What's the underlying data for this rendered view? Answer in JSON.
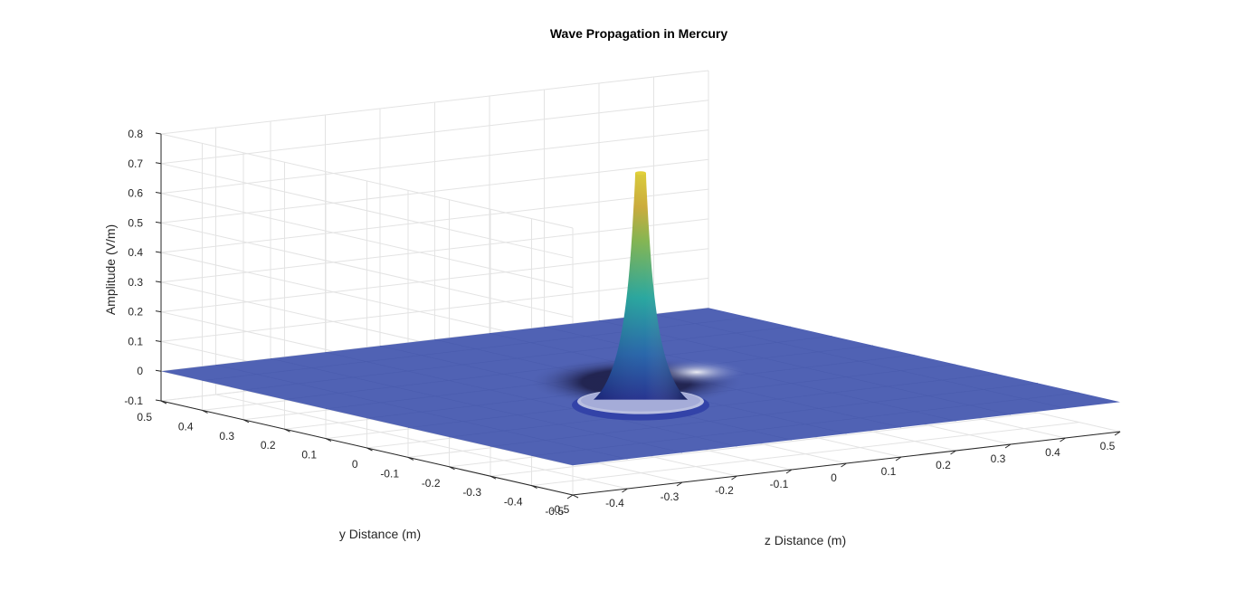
{
  "chart_data": {
    "type": "surface",
    "title": "Wave Propagation in Mercury",
    "xlabel": "z Distance (m)",
    "ylabel": "y Distance (m)",
    "zlabel": "Amplitude (V/m)",
    "x_range": [
      -0.5,
      0.5
    ],
    "y_range": [
      -0.5,
      0.5
    ],
    "z_range": [
      -0.1,
      0.8
    ],
    "x_ticks": [
      "-0.5",
      "-0.4",
      "-0.3",
      "-0.2",
      "-0.1",
      "0",
      "0.1",
      "0.2",
      "0.3",
      "0.4",
      "0.5"
    ],
    "y_ticks": [
      "0.5",
      "0.4",
      "0.3",
      "0.2",
      "0.1",
      "0",
      "-0.1",
      "-0.2",
      "-0.3",
      "-0.4",
      "-0.5"
    ],
    "z_ticks": [
      "-0.1",
      "0",
      "0.1",
      "0.2",
      "0.3",
      "0.4",
      "0.5",
      "0.6",
      "0.7",
      "0.8"
    ],
    "grid": true,
    "peak_location": [
      0,
      0
    ],
    "peak_value": 0.72,
    "trough_value": -0.05,
    "base_level": 0,
    "colormap": "parula",
    "colors": {
      "plane": "#5062b4",
      "peak": "#e5c72c",
      "mid": "#1fa8a0",
      "base": "#3a4ab0"
    }
  }
}
